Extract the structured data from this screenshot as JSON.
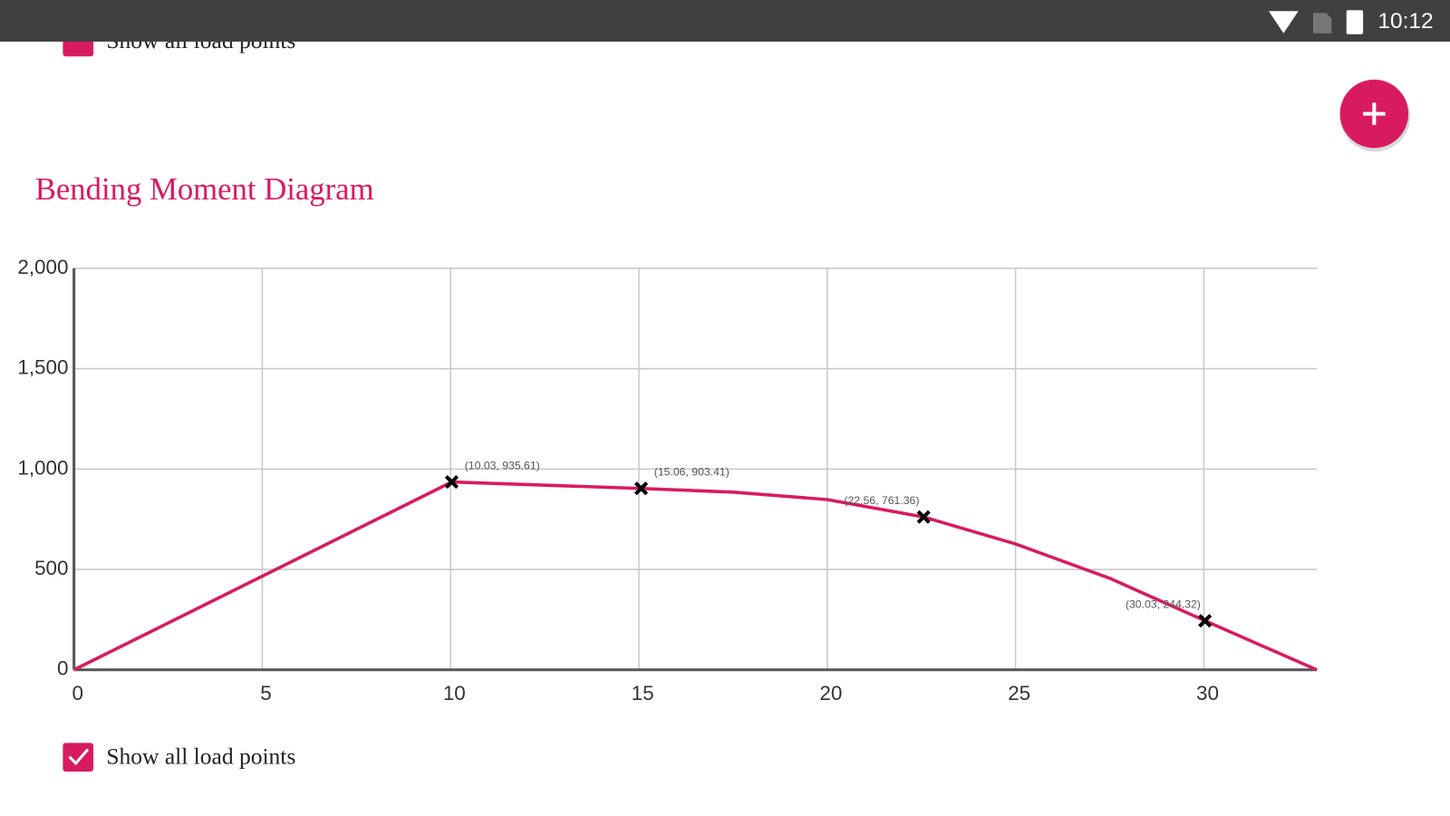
{
  "status_bar": {
    "time": "10:12"
  },
  "top_checkbox": {
    "label": "Show all load points"
  },
  "chart_data": {
    "type": "line",
    "title": "Bending Moment Diagram",
    "x": [
      0,
      10.03,
      15.06,
      17.5,
      20,
      22.56,
      25,
      27.5,
      30.03,
      33
    ],
    "series": [
      {
        "color": "#d81b60",
        "values": [
          0,
          935.61,
          903.41,
          885,
          848,
          761.36,
          627,
          456,
          244.32,
          0
        ]
      }
    ],
    "points": {
      "x": [
        10.03,
        15.06,
        22.56,
        30.03
      ],
      "values": [
        935.61,
        903.41,
        761.36,
        244.32
      ],
      "value_labels": [
        "(10.03, 935.61)",
        "(15.06, 903.41)",
        "(22.56, 761.36)",
        "(30.03, 244.32)"
      ],
      "color": "#000000"
    },
    "xlim": [
      0,
      33
    ],
    "ylim": [
      0,
      2000
    ],
    "xticks": [
      0,
      5,
      10,
      15,
      20,
      25,
      30
    ],
    "yticks": [
      0,
      500,
      {
        "value": 1000,
        "label": "1,000"
      },
      {
        "value": 1500,
        "label": "1,500"
      },
      {
        "value": 2000,
        "label": "2,000"
      }
    ],
    "grid": true
  },
  "checkbox": {
    "label": "Show all load points"
  }
}
